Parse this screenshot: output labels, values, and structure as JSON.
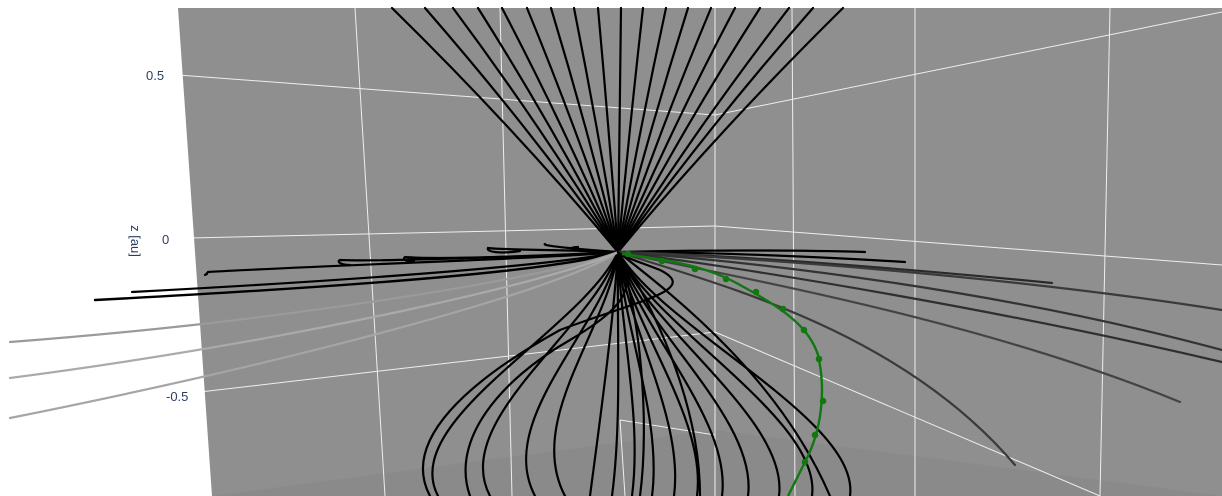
{
  "chart_data": {
    "type": "3d-line",
    "zlabel": "z [au]",
    "z_ticks": [
      {
        "label": "0.5",
        "value": 0.5
      },
      {
        "label": "0",
        "value": 0
      },
      {
        "label": "-0.5",
        "value": -0.5
      }
    ],
    "background_color": "#8f8f8f",
    "grid_color": "#ffffff",
    "field_line_color": "#000000",
    "highlight_color": "#117711",
    "grid": true,
    "series": [
      {
        "type": "field-lines",
        "count": 40
      },
      {
        "type": "highlighted-trajectory",
        "markers": 11
      }
    ]
  }
}
